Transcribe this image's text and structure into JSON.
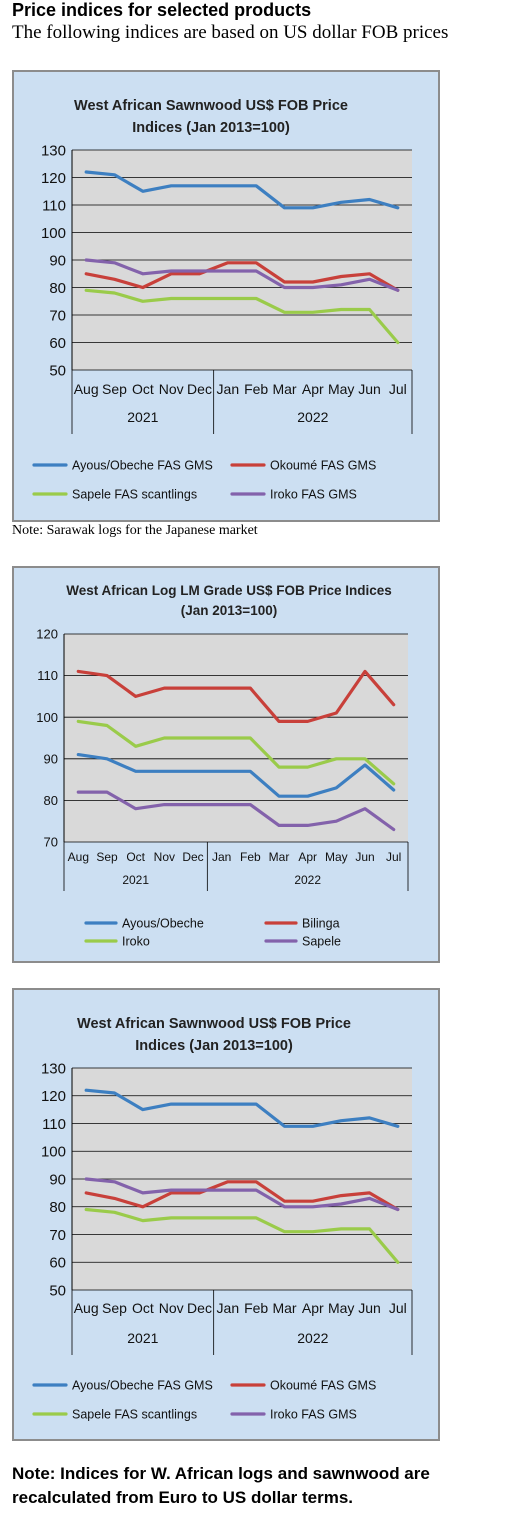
{
  "header": {
    "title": "Price indices for selected products",
    "subtitle": "The following indices are based on US dollar FOB prices"
  },
  "notes": {
    "note1": "Note: Sarawak logs for the Japanese market",
    "note2": "Note: Indices for W. African logs and sawnwood are recalculated from Euro to US dollar terms."
  },
  "colors": {
    "panel_bg": "#ccdff2",
    "plot_bg": "#d9d9d9",
    "blue": "#3d7fc1",
    "red": "#c8403a",
    "green": "#9acb4a",
    "purple": "#8362ab"
  },
  "chart_data": [
    {
      "type": "line",
      "title_line1": "West African Sawnwood US$ FOB Price",
      "title_line2": "Indices (Jan 2013=100)",
      "categories": [
        "Aug",
        "Sep",
        "Oct",
        "Nov",
        "Dec",
        "Jan",
        "Feb",
        "Mar",
        "Apr",
        "May",
        "Jun",
        "Jul"
      ],
      "year_groups": [
        {
          "label": "2021",
          "count": 5
        },
        {
          "label": "2022",
          "count": 7
        }
      ],
      "ylim": [
        50,
        130
      ],
      "yticks": [
        50,
        60,
        70,
        80,
        90,
        100,
        110,
        120,
        130
      ],
      "grid": true,
      "legend_placement": "bottom",
      "series": [
        {
          "name": "Ayous/Obeche  FAS GMS",
          "color": "#3d7fc1",
          "values": [
            122,
            121,
            115,
            117,
            117,
            117,
            117,
            109,
            109,
            111,
            112,
            109
          ]
        },
        {
          "name": "Okoumé  FAS GMS",
          "color": "#c8403a",
          "values": [
            85,
            83,
            80,
            85,
            85,
            89,
            89,
            82,
            82,
            84,
            85,
            79
          ]
        },
        {
          "name": "Sapele FAS scantlings",
          "color": "#9acb4a",
          "values": [
            79,
            78,
            75,
            76,
            76,
            76,
            76,
            71,
            71,
            72,
            72,
            60
          ]
        },
        {
          "name": "Iroko FAS GMS",
          "color": "#8362ab",
          "values": [
            90,
            89,
            85,
            86,
            86,
            86,
            86,
            80,
            80,
            81,
            83,
            79
          ]
        }
      ]
    },
    {
      "type": "line",
      "title_line1": "West African Log LM Grade US$ FOB Price Indices",
      "title_line2": "(Jan 2013=100)",
      "categories": [
        "Aug",
        "Sep",
        "Oct",
        "Nov",
        "Dec",
        "Jan",
        "Feb",
        "Mar",
        "Apr",
        "May",
        "Jun",
        "Jul"
      ],
      "year_groups": [
        {
          "label": "2021",
          "count": 5
        },
        {
          "label": "2022",
          "count": 7
        }
      ],
      "ylim": [
        70,
        120
      ],
      "yticks": [
        70,
        80,
        90,
        100,
        110,
        120
      ],
      "grid": true,
      "legend_placement": "bottom",
      "series": [
        {
          "name": "Ayous/Obeche",
          "color": "#3d7fc1",
          "values": [
            91,
            90,
            87,
            87,
            87,
            87,
            87,
            81,
            81,
            83,
            88.5,
            82.5
          ]
        },
        {
          "name": "Bilinga",
          "color": "#c8403a",
          "values": [
            111,
            110,
            105,
            107,
            107,
            107,
            107,
            99,
            99,
            101,
            111,
            103
          ]
        },
        {
          "name": "Iroko",
          "color": "#9acb4a",
          "values": [
            99,
            98,
            93,
            95,
            95,
            95,
            95,
            88,
            88,
            90,
            90,
            84
          ]
        },
        {
          "name": "Sapele",
          "color": "#8362ab",
          "values": [
            82,
            82,
            78,
            79,
            79,
            79,
            79,
            74,
            74,
            75,
            78,
            73
          ]
        }
      ]
    },
    {
      "type": "line",
      "title_line1": "West African Sawnwood US$ FOB Price",
      "title_line2": "Indices (Jan 2013=100)",
      "categories": [
        "Aug",
        "Sep",
        "Oct",
        "Nov",
        "Dec",
        "Jan",
        "Feb",
        "Mar",
        "Apr",
        "May",
        "Jun",
        "Jul"
      ],
      "year_groups": [
        {
          "label": "2021",
          "count": 5
        },
        {
          "label": "2022",
          "count": 7
        }
      ],
      "ylim": [
        50,
        130
      ],
      "yticks": [
        50,
        60,
        70,
        80,
        90,
        100,
        110,
        120,
        130
      ],
      "grid": true,
      "legend_placement": "bottom",
      "series": [
        {
          "name": "Ayous/Obeche  FAS GMS",
          "color": "#3d7fc1",
          "values": [
            122,
            121,
            115,
            117,
            117,
            117,
            117,
            109,
            109,
            111,
            112,
            109
          ]
        },
        {
          "name": "Okoumé  FAS GMS",
          "color": "#c8403a",
          "values": [
            85,
            83,
            80,
            85,
            85,
            89,
            89,
            82,
            82,
            84,
            85,
            79
          ]
        },
        {
          "name": "Sapele FAS scantlings",
          "color": "#9acb4a",
          "values": [
            79,
            78,
            75,
            76,
            76,
            76,
            76,
            71,
            71,
            72,
            72,
            60
          ]
        },
        {
          "name": "Iroko FAS GMS",
          "color": "#8362ab",
          "values": [
            90,
            89,
            85,
            86,
            86,
            86,
            86,
            80,
            80,
            81,
            83,
            79
          ]
        }
      ]
    }
  ]
}
